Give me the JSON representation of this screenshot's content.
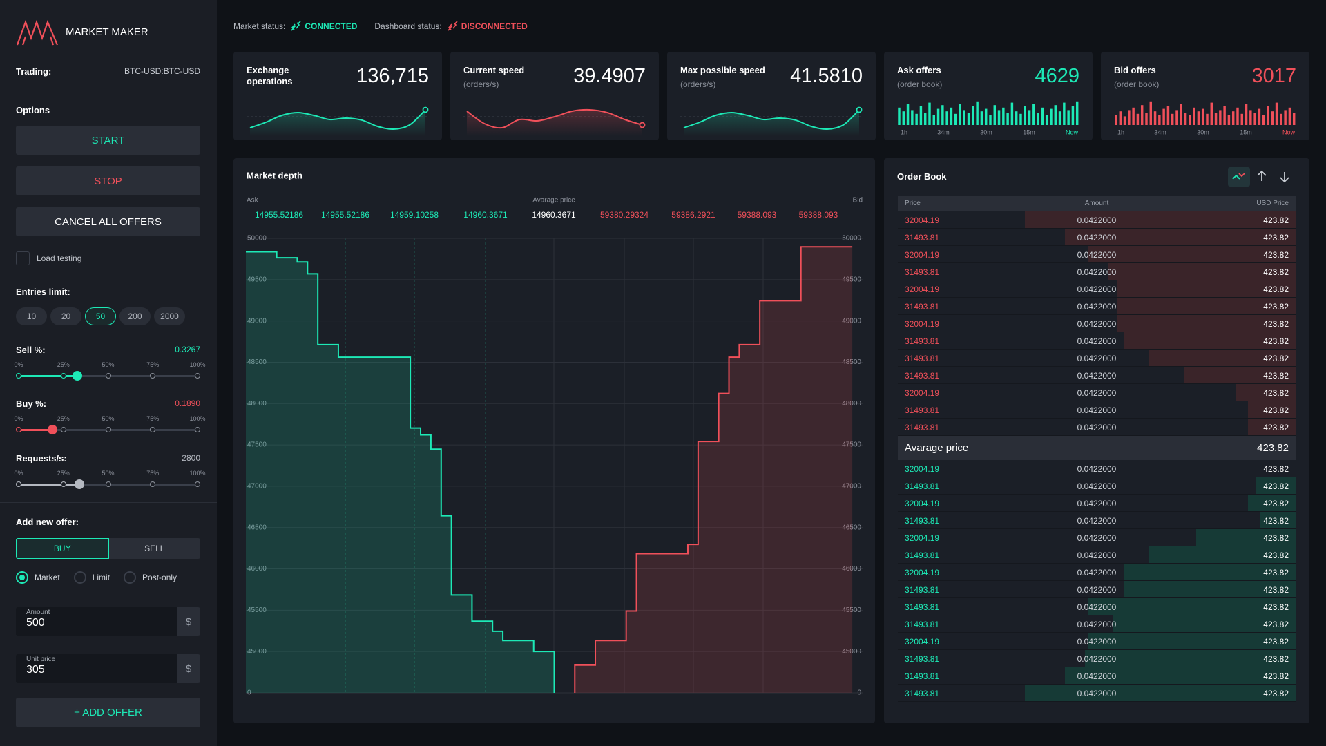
{
  "status": {
    "market_label": "Market status:",
    "market_value": "CONNECTED",
    "dashboard_label": "Dashboard status:",
    "dashboard_value": "DISCONNECTED"
  },
  "sidebar": {
    "brand": "MARKET MAKER",
    "trading_label": "Trading:",
    "trading_value": "BTC-USD:BTC-USD",
    "options_label": "Options",
    "start": "START",
    "stop": "STOP",
    "cancel": "CANCEL ALL OFFERS",
    "load_testing": "Load testing",
    "entries_label": "Entries limit:",
    "entries": [
      10,
      20,
      50,
      200,
      2000
    ],
    "entries_selected": 2,
    "slider_ticks": [
      "0%",
      "25%",
      "50%",
      "75%",
      "100%"
    ],
    "sliders": [
      {
        "label": "Sell %:",
        "value": "0.3267",
        "color": "#1de9b6"
      },
      {
        "label": "Buy %:",
        "value": "0.1890",
        "color": "#f0505a"
      },
      {
        "label": "Requests/s:",
        "value": "2800",
        "color": "#b4b8c0"
      }
    ],
    "add_offer_label": "Add new offer:",
    "tabs": [
      "BUY",
      "SELL"
    ],
    "tab_selected": 0,
    "order_types": [
      "Market",
      "Limit",
      "Post-only"
    ],
    "order_type_selected": 0,
    "amount": {
      "label": "Amount",
      "value": "500",
      "unit": "$"
    },
    "unit_price": {
      "label": "Unit price",
      "value": "305",
      "unit": "$"
    },
    "add_button": "+ ADD OFFER"
  },
  "cards": [
    {
      "title": "Exchange operations",
      "value": "136,715",
      "value_color": "#ffffff",
      "type": "line",
      "color": "#1de9b6",
      "ylim": [
        0,
        100
      ],
      "values": [
        10,
        30,
        55,
        65,
        55,
        40,
        45,
        38,
        15,
        5,
        20,
        75
      ]
    },
    {
      "title": "Current speed",
      "subtitle": "(orders/s)",
      "value": "39.4907",
      "value_color": "#ffffff",
      "type": "line",
      "color": "#f0505a",
      "ylim": [
        0,
        100
      ],
      "values": [
        70,
        25,
        10,
        40,
        35,
        50,
        70,
        75,
        65,
        40,
        20
      ]
    },
    {
      "title": "Max possible speed",
      "subtitle": "(orders/s)",
      "value": "41.5810",
      "value_color": "#ffffff",
      "type": "line",
      "color": "#1de9b6",
      "ylim": [
        0,
        100
      ],
      "values": [
        10,
        30,
        55,
        65,
        55,
        40,
        45,
        38,
        15,
        5,
        20,
        75
      ]
    },
    {
      "title": "Ask offers",
      "subtitle": "(order book)",
      "value": "4629",
      "value_color": "#1de9b6",
      "type": "bar",
      "color": "#1de9b6",
      "ylim": [
        0,
        100
      ],
      "axis_labels": [
        "1h",
        "34m",
        "30m",
        "15m",
        "Now"
      ],
      "values": [
        70,
        55,
        85,
        60,
        45,
        75,
        50,
        90,
        40,
        65,
        80,
        55,
        70,
        45,
        85,
        60,
        50,
        75,
        95,
        55,
        65,
        40,
        80,
        60,
        70,
        50,
        90,
        55,
        45,
        75,
        60,
        85,
        50,
        70,
        40,
        65,
        80,
        55,
        90,
        60,
        75,
        95
      ]
    },
    {
      "title": "Bid offers",
      "subtitle": "(order book)",
      "value": "3017",
      "value_color": "#f0505a",
      "type": "bar",
      "color": "#f0505a",
      "ylim": [
        0,
        100
      ],
      "axis_labels": [
        "1h",
        "34m",
        "30m",
        "15m",
        "Now"
      ],
      "values": [
        40,
        55,
        35,
        60,
        70,
        45,
        80,
        50,
        95,
        55,
        40,
        65,
        75,
        45,
        60,
        85,
        50,
        40,
        70,
        55,
        65,
        45,
        90,
        50,
        60,
        75,
        40,
        55,
        70,
        45,
        85,
        60,
        50,
        65,
        40,
        75,
        55,
        90,
        45,
        60,
        70,
        50
      ]
    }
  ],
  "chart_data": {
    "type": "step",
    "title": "Market depth",
    "avg_label": "Avarage price",
    "ask_prices": [
      "14955.52186",
      "14955.52186",
      "14959.10258",
      "14960.3671"
    ],
    "avg_price": "14960.3671",
    "bid_prices": [
      "59380.29324",
      "59386.2921",
      "59388.093",
      "59388.093"
    ],
    "ylim": [
      0,
      50000
    ],
    "yticks": [
      0,
      45000,
      45500,
      46000,
      46500,
      47000,
      47500,
      48000,
      48500,
      49000,
      49500,
      50000
    ],
    "grid": true,
    "series": [
      {
        "name": "Ask",
        "color": "#1de9b6",
        "values": [
          49837,
          49837,
          49837,
          49765,
          49765,
          49714,
          49571,
          48714,
          48714,
          48561,
          48561,
          48561,
          48561,
          48561,
          48561,
          48561,
          47704,
          47622,
          47449,
          46643,
          45684,
          45684,
          45367,
          45367,
          45245,
          45133,
          45133,
          45133,
          45000,
          45000,
          null,
          null,
          null,
          null,
          null,
          null,
          null,
          null,
          null,
          null,
          null,
          null,
          null,
          null,
          null,
          null,
          null,
          null,
          null,
          null,
          null,
          null,
          null,
          null,
          null,
          null,
          null,
          null,
          null,
          null
        ]
      },
      {
        "name": "Bid",
        "color": "#f0505a",
        "values": [
          null,
          null,
          null,
          null,
          null,
          null,
          null,
          null,
          null,
          null,
          null,
          null,
          null,
          null,
          null,
          null,
          null,
          null,
          null,
          null,
          null,
          null,
          null,
          null,
          null,
          null,
          null,
          null,
          null,
          null,
          null,
          null,
          30300,
          30300,
          45133,
          45133,
          45133,
          45490,
          46184,
          46184,
          46184,
          46184,
          46184,
          46296,
          47541,
          47541,
          48122,
          48561,
          48714,
          48714,
          49245,
          49245,
          49245,
          49245,
          49898,
          49898,
          49898,
          49898,
          49898,
          null
        ]
      }
    ]
  },
  "order_book": {
    "title": "Order Book",
    "columns": [
      "Price",
      "Amount",
      "USD Price"
    ],
    "asks": [
      {
        "price": 32004.19,
        "amount": "0.0422000",
        "usd": 423.82,
        "depth": 68
      },
      {
        "price": 31493.81,
        "amount": "0.0422000",
        "usd": 423.82,
        "depth": 58
      },
      {
        "price": 32004.19,
        "amount": "0.0422000",
        "usd": 423.82,
        "depth": 52
      },
      {
        "price": 31493.81,
        "amount": "0.0422000",
        "usd": 423.82,
        "depth": 47
      },
      {
        "price": 32004.19,
        "amount": "0.0422000",
        "usd": 423.82,
        "depth": 45
      },
      {
        "price": 31493.81,
        "amount": "0.0422000",
        "usd": 423.82,
        "depth": 45
      },
      {
        "price": 32004.19,
        "amount": "0.0422000",
        "usd": 423.82,
        "depth": 45
      },
      {
        "price": 31493.81,
        "amount": "0.0422000",
        "usd": 423.82,
        "depth": 43
      },
      {
        "price": 31493.81,
        "amount": "0.0422000",
        "usd": 423.82,
        "depth": 37
      },
      {
        "price": 31493.81,
        "amount": "0.0422000",
        "usd": 423.82,
        "depth": 28
      },
      {
        "price": 32004.19,
        "amount": "0.0422000",
        "usd": 423.82,
        "depth": 15
      },
      {
        "price": 31493.81,
        "amount": "0.0422000",
        "usd": 423.82,
        "depth": 12
      },
      {
        "price": 31493.81,
        "amount": "0.0422000",
        "usd": 423.82,
        "depth": 12
      }
    ],
    "average": {
      "label": "Avarage price",
      "value": 423.82
    },
    "bids": [
      {
        "price": 32004.19,
        "amount": "0.0422000",
        "usd": 423.82,
        "depth": 0
      },
      {
        "price": 31493.81,
        "amount": "0.0422000",
        "usd": 423.82,
        "depth": 10
      },
      {
        "price": 32004.19,
        "amount": "0.0422000",
        "usd": 423.82,
        "depth": 12
      },
      {
        "price": 31493.81,
        "amount": "0.0422000",
        "usd": 423.82,
        "depth": 9
      },
      {
        "price": 32004.19,
        "amount": "0.0422000",
        "usd": 423.82,
        "depth": 25
      },
      {
        "price": 31493.81,
        "amount": "0.0422000",
        "usd": 423.82,
        "depth": 37
      },
      {
        "price": 32004.19,
        "amount": "0.0422000",
        "usd": 423.82,
        "depth": 43
      },
      {
        "price": 31493.81,
        "amount": "0.0422000",
        "usd": 423.82,
        "depth": 43
      },
      {
        "price": 31493.81,
        "amount": "0.0422000",
        "usd": 423.82,
        "depth": 52
      },
      {
        "price": 31493.81,
        "amount": "0.0422000",
        "usd": 423.82,
        "depth": 46
      },
      {
        "price": 32004.19,
        "amount": "0.0422000",
        "usd": 423.82,
        "depth": 52
      },
      {
        "price": 31493.81,
        "amount": "0.0422000",
        "usd": 423.82,
        "depth": 53
      },
      {
        "price": 31493.81,
        "amount": "0.0422000",
        "usd": 423.82,
        "depth": 58
      },
      {
        "price": 31493.81,
        "amount": "0.0422000",
        "usd": 423.82,
        "depth": 68
      }
    ]
  }
}
